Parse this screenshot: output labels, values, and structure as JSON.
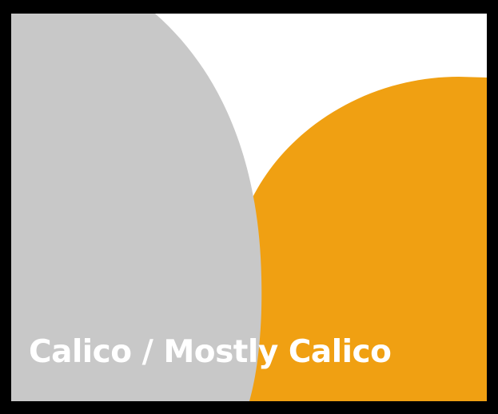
{
  "caption": {
    "text": "Calico / Mostly Calico"
  },
  "colors": {
    "frame": "#000000",
    "background": "#ffffff",
    "gray_shape": "#c8c8c8",
    "orange_shape": "#f0a012",
    "caption_text": "#ffffff"
  }
}
